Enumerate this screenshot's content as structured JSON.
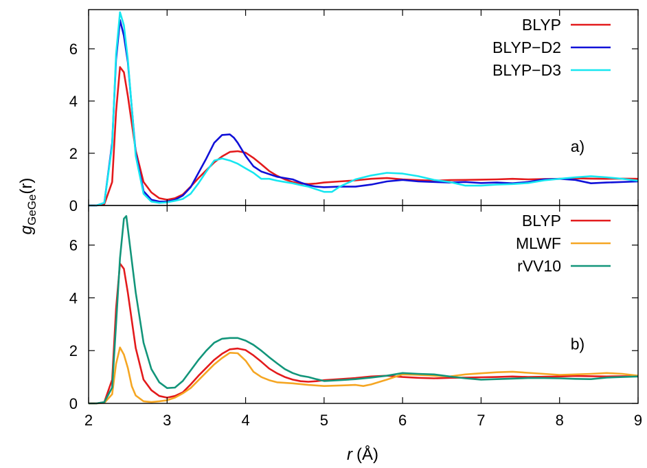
{
  "figure": {
    "ylabel_main": "g",
    "ylabel_sub": "GeGe",
    "ylabel_tail": "(r)",
    "xlabel_var": "r",
    "xlabel_unit": "(Å)"
  },
  "chart_data": [
    {
      "type": "line",
      "panel_label": "a)",
      "xlim": [
        2,
        9
      ],
      "ylim": [
        0,
        7.5
      ],
      "xticks": [
        "2",
        "3",
        "4",
        "5",
        "6",
        "7",
        "8",
        "9"
      ],
      "yticks": [
        "0",
        "2",
        "4",
        "6"
      ],
      "legend_position": "top-right",
      "series": [
        {
          "name": "BLYP",
          "color": "#e31a1c",
          "x": [
            2.0,
            2.1,
            2.2,
            2.3,
            2.35,
            2.4,
            2.45,
            2.5,
            2.6,
            2.7,
            2.8,
            2.9,
            3.0,
            3.1,
            3.2,
            3.3,
            3.4,
            3.5,
            3.6,
            3.7,
            3.8,
            3.9,
            4.0,
            4.1,
            4.2,
            4.3,
            4.4,
            4.5,
            4.6,
            4.7,
            4.8,
            4.9,
            5.0,
            5.2,
            5.4,
            5.6,
            5.8,
            6.0,
            6.2,
            6.4,
            6.6,
            6.8,
            7.0,
            7.2,
            7.4,
            7.6,
            7.8,
            8.0,
            8.2,
            8.4,
            8.6,
            8.8,
            9.0
          ],
          "y": [
            0,
            0,
            0.05,
            0.9,
            3.6,
            5.3,
            5.1,
            4.2,
            2.1,
            0.9,
            0.5,
            0.28,
            0.22,
            0.28,
            0.42,
            0.72,
            1.05,
            1.35,
            1.65,
            1.88,
            2.05,
            2.08,
            2.02,
            1.82,
            1.58,
            1.32,
            1.14,
            1.0,
            0.9,
            0.84,
            0.82,
            0.84,
            0.88,
            0.92,
            0.96,
            1.02,
            1.05,
            1.0,
            0.97,
            0.95,
            0.97,
            0.98,
            0.99,
            1.0,
            1.02,
            1.0,
            1.01,
            1.02,
            1.04,
            1.03,
            1.02,
            1.03,
            1.02
          ]
        },
        {
          "name": "BLYP−D2",
          "color": "#1010d8",
          "x": [
            2.0,
            2.1,
            2.2,
            2.3,
            2.35,
            2.4,
            2.45,
            2.5,
            2.6,
            2.7,
            2.8,
            2.9,
            3.0,
            3.1,
            3.2,
            3.3,
            3.4,
            3.5,
            3.6,
            3.7,
            3.8,
            3.85,
            3.9,
            4.0,
            4.1,
            4.2,
            4.3,
            4.4,
            4.5,
            4.6,
            4.7,
            4.8,
            4.9,
            5.0,
            5.2,
            5.4,
            5.6,
            5.8,
            6.0,
            6.2,
            6.4,
            6.6,
            6.8,
            7.0,
            7.2,
            7.4,
            7.6,
            7.8,
            8.0,
            8.2,
            8.4,
            8.6,
            8.8,
            9.0
          ],
          "y": [
            0,
            0,
            0.1,
            2.4,
            5.6,
            7.1,
            6.5,
            5.5,
            2.0,
            0.55,
            0.22,
            0.15,
            0.15,
            0.22,
            0.38,
            0.7,
            1.25,
            1.8,
            2.4,
            2.7,
            2.72,
            2.6,
            2.4,
            1.9,
            1.5,
            1.3,
            1.2,
            1.1,
            1.05,
            1.0,
            0.88,
            0.78,
            0.72,
            0.7,
            0.72,
            0.72,
            0.8,
            0.92,
            0.98,
            0.92,
            0.9,
            0.88,
            0.9,
            0.86,
            0.88,
            0.85,
            0.9,
            1.0,
            1.02,
            0.98,
            0.85,
            0.88,
            0.9,
            0.92
          ]
        },
        {
          "name": "BLYP−D3",
          "color": "#16e6f0",
          "x": [
            2.0,
            2.1,
            2.2,
            2.3,
            2.35,
            2.4,
            2.45,
            2.5,
            2.6,
            2.7,
            2.8,
            2.9,
            3.0,
            3.1,
            3.2,
            3.3,
            3.4,
            3.5,
            3.6,
            3.7,
            3.8,
            3.9,
            4.0,
            4.1,
            4.2,
            4.3,
            4.4,
            4.5,
            4.6,
            4.7,
            4.8,
            4.9,
            5.0,
            5.1,
            5.2,
            5.4,
            5.6,
            5.8,
            6.0,
            6.2,
            6.4,
            6.6,
            6.8,
            7.0,
            7.2,
            7.4,
            7.6,
            7.8,
            8.0,
            8.2,
            8.4,
            8.6,
            8.8,
            9.0
          ],
          "y": [
            0,
            0,
            0.1,
            2.3,
            5.8,
            7.4,
            6.9,
            5.6,
            1.9,
            0.45,
            0.15,
            0.1,
            0.12,
            0.18,
            0.25,
            0.45,
            0.85,
            1.3,
            1.72,
            1.8,
            1.72,
            1.6,
            1.42,
            1.25,
            1.02,
            1.02,
            0.95,
            0.9,
            0.85,
            0.78,
            0.72,
            0.62,
            0.52,
            0.52,
            0.72,
            1.0,
            1.15,
            1.25,
            1.22,
            1.12,
            0.98,
            0.9,
            0.76,
            0.76,
            0.8,
            0.82,
            0.86,
            0.96,
            1.02,
            1.08,
            1.12,
            1.08,
            1.02,
            0.95
          ]
        }
      ]
    },
    {
      "type": "line",
      "panel_label": "b)",
      "xlim": [
        2,
        9
      ],
      "ylim": [
        0,
        7.5
      ],
      "xticks": [
        "2",
        "3",
        "4",
        "5",
        "6",
        "7",
        "8",
        "9"
      ],
      "yticks": [
        "0",
        "2",
        "4",
        "6"
      ],
      "legend_position": "top-right",
      "series": [
        {
          "name": "BLYP",
          "color": "#e31a1c",
          "x": [
            2.0,
            2.1,
            2.2,
            2.3,
            2.35,
            2.4,
            2.45,
            2.5,
            2.6,
            2.7,
            2.8,
            2.9,
            3.0,
            3.1,
            3.2,
            3.3,
            3.4,
            3.5,
            3.6,
            3.7,
            3.8,
            3.9,
            4.0,
            4.1,
            4.2,
            4.3,
            4.4,
            4.5,
            4.6,
            4.7,
            4.8,
            4.9,
            5.0,
            5.2,
            5.4,
            5.6,
            5.8,
            6.0,
            6.2,
            6.4,
            6.6,
            6.8,
            7.0,
            7.2,
            7.4,
            7.6,
            7.8,
            8.0,
            8.2,
            8.4,
            8.6,
            8.8,
            9.0
          ],
          "y": [
            0,
            0,
            0.05,
            0.9,
            3.6,
            5.3,
            5.1,
            4.2,
            2.1,
            0.9,
            0.5,
            0.28,
            0.22,
            0.28,
            0.42,
            0.72,
            1.05,
            1.35,
            1.65,
            1.88,
            2.05,
            2.08,
            2.02,
            1.82,
            1.58,
            1.32,
            1.14,
            1.0,
            0.9,
            0.84,
            0.82,
            0.84,
            0.88,
            0.92,
            0.96,
            1.02,
            1.05,
            1.0,
            0.97,
            0.95,
            0.97,
            0.98,
            0.99,
            1.0,
            1.02,
            1.0,
            1.01,
            1.02,
            1.04,
            1.03,
            1.02,
            1.03,
            1.02
          ]
        },
        {
          "name": "MLWF",
          "color": "#f5a623",
          "x": [
            2.0,
            2.1,
            2.2,
            2.3,
            2.35,
            2.4,
            2.45,
            2.5,
            2.55,
            2.6,
            2.7,
            2.8,
            2.9,
            3.0,
            3.1,
            3.2,
            3.3,
            3.4,
            3.5,
            3.6,
            3.7,
            3.8,
            3.9,
            4.0,
            4.1,
            4.2,
            4.3,
            4.4,
            4.6,
            4.8,
            5.0,
            5.2,
            5.4,
            5.5,
            5.6,
            5.8,
            6.0,
            6.2,
            6.4,
            6.6,
            6.8,
            7.0,
            7.2,
            7.4,
            7.6,
            7.8,
            8.0,
            8.2,
            8.4,
            8.6,
            8.8,
            9.0
          ],
          "y": [
            0,
            0,
            0.02,
            0.35,
            1.5,
            2.12,
            1.85,
            1.35,
            0.65,
            0.3,
            0.08,
            0.05,
            0.08,
            0.12,
            0.22,
            0.38,
            0.58,
            0.88,
            1.18,
            1.48,
            1.72,
            1.92,
            1.9,
            1.62,
            1.2,
            1.0,
            0.88,
            0.8,
            0.76,
            0.7,
            0.66,
            0.68,
            0.7,
            0.66,
            0.72,
            0.9,
            1.1,
            1.08,
            1.05,
            1.02,
            1.1,
            1.14,
            1.18,
            1.2,
            1.16,
            1.12,
            1.08,
            1.1,
            1.12,
            1.15,
            1.12,
            1.05
          ]
        },
        {
          "name": "rVV10",
          "color": "#12957a",
          "x": [
            2.0,
            2.1,
            2.2,
            2.3,
            2.35,
            2.4,
            2.45,
            2.48,
            2.55,
            2.6,
            2.7,
            2.8,
            2.9,
            3.0,
            3.1,
            3.2,
            3.3,
            3.4,
            3.5,
            3.6,
            3.7,
            3.8,
            3.9,
            4.0,
            4.1,
            4.2,
            4.3,
            4.4,
            4.5,
            4.6,
            4.7,
            4.8,
            4.9,
            5.0,
            5.2,
            5.4,
            5.6,
            5.8,
            6.0,
            6.2,
            6.4,
            6.6,
            6.8,
            7.0,
            7.2,
            7.4,
            7.6,
            7.8,
            8.0,
            8.2,
            8.4,
            8.6,
            8.8,
            9.0
          ],
          "y": [
            0,
            0,
            0.05,
            0.6,
            3.0,
            5.5,
            7.0,
            7.1,
            5.4,
            4.2,
            2.3,
            1.3,
            0.8,
            0.58,
            0.6,
            0.85,
            1.25,
            1.65,
            2.0,
            2.3,
            2.45,
            2.48,
            2.48,
            2.38,
            2.22,
            2.0,
            1.75,
            1.52,
            1.3,
            1.15,
            1.05,
            1.0,
            0.92,
            0.85,
            0.88,
            0.92,
            0.98,
            1.05,
            1.15,
            1.12,
            1.1,
            1.02,
            0.95,
            0.9,
            0.92,
            0.94,
            0.96,
            0.96,
            0.95,
            0.93,
            0.92,
            0.98,
            1.0,
            1.02
          ]
        }
      ]
    }
  ]
}
